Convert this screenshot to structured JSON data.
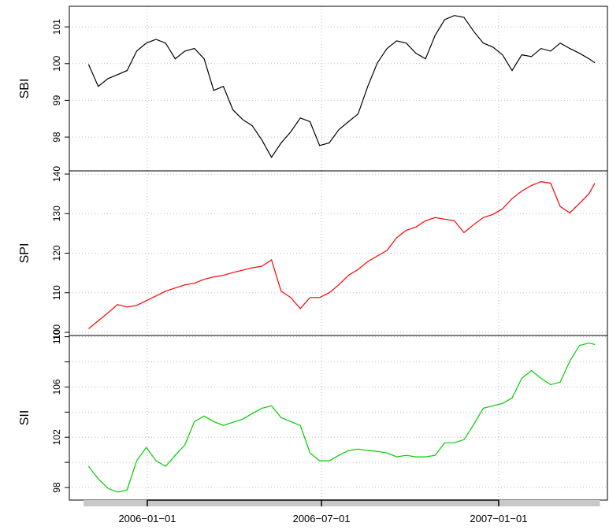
{
  "chart_data": [
    {
      "type": "line",
      "ylabel": "SBI",
      "x": [
        "2005-11-01",
        "2005-11-11",
        "2005-11-21",
        "2005-12-01",
        "2005-12-11",
        "2005-12-21",
        "2005-12-31",
        "2006-01-10",
        "2006-01-20",
        "2006-01-30",
        "2006-02-09",
        "2006-02-19",
        "2006-03-01",
        "2006-03-11",
        "2006-03-21",
        "2006-03-31",
        "2006-04-10",
        "2006-04-20",
        "2006-04-30",
        "2006-05-10",
        "2006-05-20",
        "2006-05-30",
        "2006-06-09",
        "2006-06-19",
        "2006-06-29",
        "2006-07-09",
        "2006-07-19",
        "2006-07-29",
        "2006-08-08",
        "2006-08-18",
        "2006-08-28",
        "2006-09-07",
        "2006-09-17",
        "2006-09-27",
        "2006-10-07",
        "2006-10-17",
        "2006-10-27",
        "2006-11-06",
        "2006-11-16",
        "2006-11-26",
        "2006-12-06",
        "2006-12-16",
        "2006-12-26",
        "2007-01-05",
        "2007-01-15",
        "2007-01-25",
        "2007-02-04",
        "2007-02-14",
        "2007-02-24",
        "2007-03-06",
        "2007-03-16",
        "2007-03-26",
        "2007-04-05",
        "2007-04-11"
      ],
      "series": [
        {
          "color": "#000000",
          "values": [
            99.98,
            99.38,
            99.59,
            99.7,
            99.81,
            100.34,
            100.56,
            100.66,
            100.56,
            100.13,
            100.34,
            100.41,
            100.13,
            99.27,
            99.38,
            98.74,
            98.48,
            98.31,
            97.92,
            97.45,
            97.84,
            98.14,
            98.52,
            98.42,
            97.77,
            97.84,
            98.2,
            98.42,
            98.63,
            99.38,
            100.02,
            100.41,
            100.62,
            100.56,
            100.28,
            100.13,
            100.77,
            101.2,
            101.31,
            101.26,
            100.88,
            100.56,
            100.45,
            100.24,
            99.81,
            100.24,
            100.19,
            100.41,
            100.34,
            100.56,
            100.41,
            100.28,
            100.13,
            100.02
          ]
        }
      ],
      "xlim": [
        "2005-10-12",
        "2007-04-24"
      ],
      "ylim": [
        97.08,
        101.56
      ],
      "yticks": [
        98,
        99,
        100,
        101
      ],
      "grid": true
    },
    {
      "type": "line",
      "ylabel": "SPI",
      "x": [
        "2005-11-01",
        "2005-11-11",
        "2005-11-21",
        "2005-12-01",
        "2005-12-11",
        "2005-12-21",
        "2005-12-31",
        "2006-01-10",
        "2006-01-20",
        "2006-01-30",
        "2006-02-09",
        "2006-02-19",
        "2006-03-01",
        "2006-03-11",
        "2006-03-21",
        "2006-03-31",
        "2006-04-10",
        "2006-04-20",
        "2006-04-30",
        "2006-05-10",
        "2006-05-20",
        "2006-05-30",
        "2006-06-09",
        "2006-06-19",
        "2006-06-29",
        "2006-07-09",
        "2006-07-19",
        "2006-07-29",
        "2006-08-08",
        "2006-08-18",
        "2006-08-28",
        "2006-09-07",
        "2006-09-17",
        "2006-09-27",
        "2006-10-07",
        "2006-10-17",
        "2006-10-27",
        "2006-11-06",
        "2006-11-16",
        "2006-11-26",
        "2006-12-06",
        "2006-12-16",
        "2006-12-26",
        "2007-01-05",
        "2007-01-15",
        "2007-01-25",
        "2007-02-04",
        "2007-02-14",
        "2007-02-24",
        "2007-03-06",
        "2007-03-16",
        "2007-03-26",
        "2007-04-05",
        "2007-04-11"
      ],
      "series": [
        {
          "color": "#ff0000",
          "values": [
            100.9,
            102.9,
            104.9,
            107.0,
            106.4,
            106.8,
            108.0,
            109.2,
            110.4,
            111.2,
            112.0,
            112.4,
            113.4,
            114.0,
            114.4,
            115.1,
            115.7,
            116.3,
            116.7,
            118.3,
            110.4,
            108.8,
            106.0,
            108.8,
            108.8,
            110.0,
            112.0,
            114.4,
            115.9,
            117.9,
            119.3,
            120.7,
            123.9,
            125.8,
            126.6,
            128.2,
            129.0,
            128.6,
            128.2,
            125.2,
            127.2,
            129.0,
            129.8,
            131.2,
            133.8,
            135.7,
            137.1,
            138.1,
            137.7,
            131.8,
            130.2,
            132.6,
            135.1,
            137.7
          ]
        }
      ],
      "xlim": [
        "2005-10-12",
        "2007-04-24"
      ],
      "ylim": [
        99.2,
        140.8
      ],
      "yticks": [
        100,
        110,
        120,
        130,
        140
      ],
      "grid": true
    },
    {
      "type": "line",
      "ylabel": "SII",
      "x": [
        "2005-11-01",
        "2005-11-11",
        "2005-11-21",
        "2005-12-01",
        "2005-12-11",
        "2005-12-21",
        "2005-12-31",
        "2006-01-10",
        "2006-01-20",
        "2006-01-30",
        "2006-02-09",
        "2006-02-19",
        "2006-03-01",
        "2006-03-11",
        "2006-03-21",
        "2006-03-31",
        "2006-04-10",
        "2006-04-20",
        "2006-04-30",
        "2006-05-10",
        "2006-05-20",
        "2006-05-30",
        "2006-06-09",
        "2006-06-19",
        "2006-06-29",
        "2006-07-09",
        "2006-07-19",
        "2006-07-29",
        "2006-08-08",
        "2006-08-18",
        "2006-08-28",
        "2006-09-07",
        "2006-09-17",
        "2006-09-27",
        "2006-10-07",
        "2006-10-17",
        "2006-10-27",
        "2006-11-06",
        "2006-11-16",
        "2006-11-26",
        "2006-12-06",
        "2006-12-16",
        "2006-12-26",
        "2007-01-05",
        "2007-01-15",
        "2007-01-25",
        "2007-02-04",
        "2007-02-14",
        "2007-02-24",
        "2007-03-06",
        "2007-03-16",
        "2007-03-26",
        "2007-04-05",
        "2007-04-11"
      ],
      "series": [
        {
          "color": "#00cd00",
          "values": [
            99.69,
            98.69,
            97.94,
            97.63,
            97.81,
            100.13,
            101.19,
            100.13,
            99.69,
            100.56,
            101.38,
            103.25,
            103.69,
            103.25,
            102.94,
            103.19,
            103.44,
            103.88,
            104.31,
            104.5,
            103.56,
            103.25,
            102.94,
            100.75,
            100.13,
            100.13,
            100.56,
            100.94,
            101.06,
            100.94,
            100.88,
            100.75,
            100.44,
            100.56,
            100.44,
            100.44,
            100.56,
            101.56,
            101.56,
            101.81,
            103.0,
            104.31,
            104.5,
            104.69,
            105.13,
            106.69,
            107.31,
            106.69,
            106.19,
            106.38,
            108.06,
            109.31,
            109.5,
            109.38
          ]
        }
      ],
      "xlim": [
        "2005-10-12",
        "2007-04-24"
      ],
      "ylim": [
        97.0,
        110.1
      ],
      "yticks": [
        98,
        102,
        106,
        110
      ],
      "minor_yticks": [
        100,
        104,
        108
      ],
      "grid": true,
      "xticks": [
        {
          "value": "2006-01-01",
          "label": "2006−01−01"
        },
        {
          "value": "2006-07-01",
          "label": "2006−07−01"
        },
        {
          "value": "2007-01-01",
          "label": "2007−01−01"
        }
      ]
    }
  ]
}
